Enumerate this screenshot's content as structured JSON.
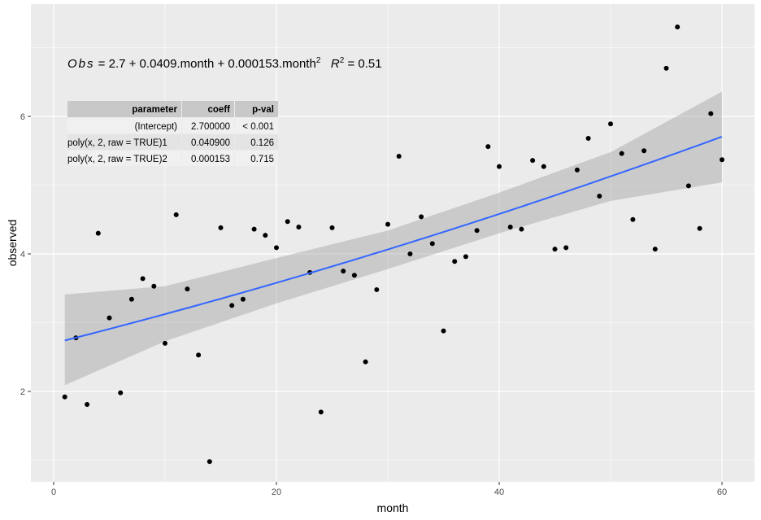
{
  "chart_data": {
    "type": "scatter",
    "xlabel": "month",
    "ylabel": "observed",
    "xlim": [
      -2,
      62
    ],
    "ylim": [
      0.55,
      7.5
    ],
    "x_ticks": [
      0,
      20,
      40,
      60
    ],
    "y_ticks": [
      2,
      4,
      6
    ],
    "grid": true,
    "x": [
      1,
      2,
      3,
      4,
      5,
      6,
      7,
      8,
      9,
      10,
      11,
      12,
      13,
      14,
      15,
      16,
      17,
      18,
      19,
      20,
      21,
      22,
      23,
      24,
      25,
      26,
      27,
      28,
      29,
      30,
      31,
      32,
      33,
      34,
      35,
      36,
      37,
      38,
      39,
      40,
      41,
      42,
      43,
      44,
      45,
      46,
      47,
      48,
      49,
      50,
      51,
      52,
      53,
      54,
      55,
      56,
      57,
      58,
      59,
      60
    ],
    "y": [
      1.92,
      2.78,
      1.81,
      4.3,
      3.07,
      1.98,
      3.34,
      3.64,
      3.53,
      2.7,
      4.57,
      3.49,
      2.53,
      0.98,
      4.38,
      3.25,
      3.34,
      4.36,
      4.27,
      4.09,
      4.47,
      4.39,
      3.73,
      1.7,
      4.38,
      3.75,
      3.69,
      2.43,
      3.48,
      4.43,
      5.42,
      4.0,
      4.54,
      4.15,
      2.88,
      3.89,
      3.96,
      4.34,
      5.56,
      5.27,
      4.39,
      4.36,
      5.36,
      5.27,
      4.07,
      4.09,
      5.22,
      5.68,
      4.84,
      5.89,
      5.46,
      4.5,
      5.5,
      4.07,
      6.7,
      7.3,
      4.99,
      4.37,
      6.04,
      5.37
    ],
    "fit": {
      "coefficients": [
        2.7,
        0.0409,
        0.000153
      ],
      "color": "#3366FF",
      "confidence_band": {
        "x": [
          1,
          10,
          20,
          30,
          40,
          50,
          60
        ],
        "lower": [
          2.09,
          2.73,
          3.28,
          3.78,
          4.3,
          4.77,
          5.04
        ],
        "upper": [
          3.41,
          3.53,
          3.94,
          4.34,
          4.89,
          5.48,
          6.36
        ]
      }
    },
    "equation": {
      "lhs": "Obs",
      "rhs": " = 2.7 + 0.0409.month + 0.000153.month",
      "sup": "2",
      "r2_label": "R",
      "r2_sup": "2",
      "r2_value": " = 0.51"
    },
    "table": {
      "headers": [
        "parameter",
        "coeff",
        "p-val"
      ],
      "rows": [
        [
          "(Intercept)",
          "2.700000",
          "< 0.001"
        ],
        [
          "poly(x, 2, raw = TRUE)1",
          "0.040900",
          "0.126"
        ],
        [
          "poly(x, 2, raw = TRUE)2",
          "0.000153",
          "0.715"
        ]
      ]
    },
    "colors": {
      "panel": "#EBEBEB",
      "band": "#C8C8C8",
      "points": "#000000",
      "grid": "#FFFFFF"
    }
  }
}
